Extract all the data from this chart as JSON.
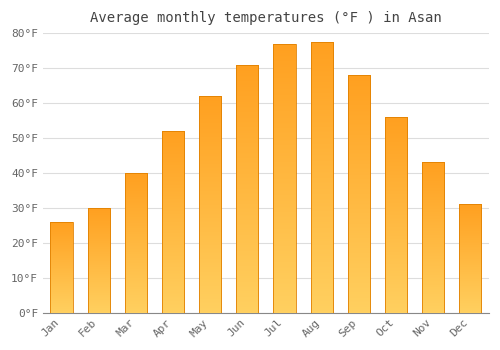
{
  "title": "Average monthly temperatures (°F ) in Asan",
  "months": [
    "Jan",
    "Feb",
    "Mar",
    "Apr",
    "May",
    "Jun",
    "Jul",
    "Aug",
    "Sep",
    "Oct",
    "Nov",
    "Dec"
  ],
  "values": [
    26,
    30,
    40,
    52,
    62,
    71,
    77,
    77.5,
    68,
    56,
    43,
    31
  ],
  "bar_color_main": "#FFA500",
  "bar_color_light": "#FFD060",
  "bar_edge_color": "#E08000",
  "background_color": "#FFFFFF",
  "plot_bg_color": "#FFFFFF",
  "grid_color": "#DDDDDD",
  "ylim": [
    0,
    80
  ],
  "yticks": [
    0,
    10,
    20,
    30,
    40,
    50,
    60,
    70,
    80
  ],
  "ytick_labels": [
    "0°F",
    "10°F",
    "20°F",
    "30°F",
    "40°F",
    "50°F",
    "60°F",
    "70°F",
    "80°F"
  ],
  "title_fontsize": 10,
  "tick_fontsize": 8,
  "title_color": "#444444",
  "tick_color": "#666666",
  "font_family": "monospace",
  "bar_width": 0.6
}
